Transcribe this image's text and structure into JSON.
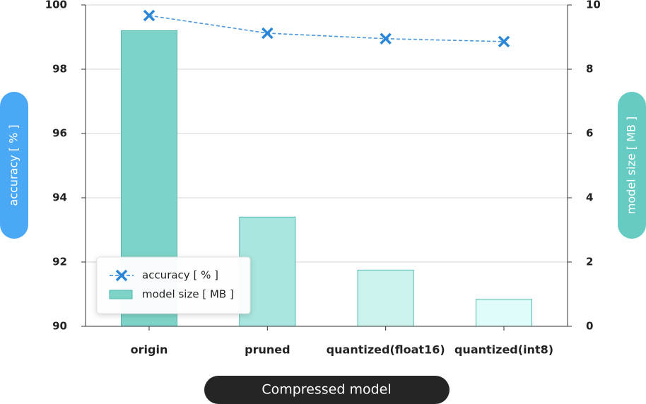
{
  "chart_data": {
    "type": "combo",
    "categories": [
      "origin",
      "pruned",
      "quantized(float16)",
      "quantized(int8)"
    ],
    "xlabel": "Compressed model",
    "ylabel": "accuracy [ % ]",
    "y2label": "model size [ MB ]",
    "ylim": [
      90,
      100
    ],
    "yticks": [
      90,
      92,
      94,
      96,
      98,
      100
    ],
    "y2lim": [
      0,
      10
    ],
    "y2ticks": [
      0,
      2,
      4,
      6,
      8,
      10
    ],
    "grid": true,
    "legend": "lower left",
    "series": [
      {
        "name": "accuracy [ % ]",
        "type": "line",
        "color": "#2a86d8",
        "values": [
          99.67,
          99.12,
          98.95,
          98.86
        ]
      },
      {
        "name": "model size [ MB ]",
        "type": "bar",
        "axis": "y2",
        "colors": [
          "#7dd3c8",
          "#a8e6df",
          "#cdf3ef",
          "#dffcfa"
        ],
        "values": [
          9.2,
          3.4,
          1.75,
          0.84
        ]
      }
    ]
  }
}
